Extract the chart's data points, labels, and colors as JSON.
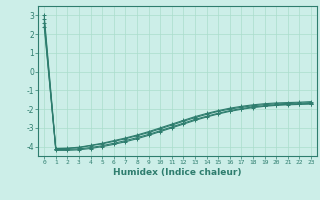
{
  "title": "",
  "xlabel": "Humidex (Indice chaleur)",
  "ylabel": "",
  "bg_color": "#cceee8",
  "grid_color": "#aaddcc",
  "line_color": "#2e7d6e",
  "xlim": [
    -0.5,
    23.5
  ],
  "ylim": [
    -4.5,
    3.5
  ],
  "yticks": [
    -4,
    -3,
    -2,
    -1,
    0,
    1,
    2,
    3
  ],
  "xticks": [
    0,
    1,
    2,
    3,
    4,
    5,
    6,
    7,
    8,
    9,
    10,
    11,
    12,
    13,
    14,
    15,
    16,
    17,
    18,
    19,
    20,
    21,
    22,
    23
  ],
  "lines": [
    [
      3.0,
      -4.1,
      -4.1,
      -4.05,
      -3.95,
      -3.85,
      -3.72,
      -3.58,
      -3.42,
      -3.25,
      -3.05,
      -2.85,
      -2.65,
      -2.45,
      -2.28,
      -2.12,
      -2.0,
      -1.9,
      -1.82,
      -1.76,
      -1.72,
      -1.7,
      -1.68,
      -1.65
    ],
    [
      2.8,
      -4.15,
      -4.15,
      -4.12,
      -4.05,
      -3.95,
      -3.82,
      -3.68,
      -3.52,
      -3.35,
      -3.15,
      -2.95,
      -2.75,
      -2.55,
      -2.38,
      -2.22,
      -2.08,
      -1.97,
      -1.88,
      -1.82,
      -1.77,
      -1.74,
      -1.72,
      -1.7
    ],
    [
      2.6,
      -4.2,
      -4.2,
      -4.17,
      -4.1,
      -4.0,
      -3.88,
      -3.74,
      -3.58,
      -3.4,
      -3.2,
      -3.0,
      -2.8,
      -2.6,
      -2.42,
      -2.26,
      -2.12,
      -2.01,
      -1.92,
      -1.85,
      -1.8,
      -1.77,
      -1.75,
      -1.73
    ],
    [
      2.4,
      -4.1,
      -4.08,
      -4.03,
      -3.93,
      -3.82,
      -3.68,
      -3.54,
      -3.38,
      -3.2,
      -3.0,
      -2.8,
      -2.6,
      -2.4,
      -2.23,
      -2.08,
      -1.95,
      -1.85,
      -1.77,
      -1.71,
      -1.67,
      -1.65,
      -1.63,
      -1.6
    ]
  ],
  "marker": "+",
  "markersize": 3,
  "linewidth": 0.8
}
